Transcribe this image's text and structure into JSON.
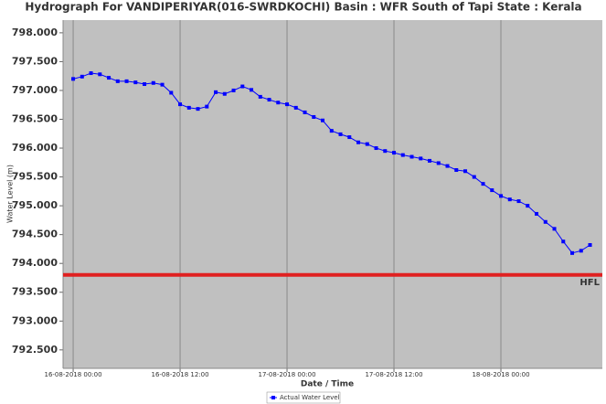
{
  "chart_data": {
    "type": "line",
    "title": "Hydrograph For VANDIPERIYAR(016-SWRDKOCHI) Basin : WFR South of Tapi State : Kerala",
    "x_label": "Date / Time",
    "y_label": "Water Level (m)",
    "x": [
      "2018-08-16 00:00",
      "2018-08-16 01:00",
      "2018-08-16 02:00",
      "2018-08-16 03:00",
      "2018-08-16 04:00",
      "2018-08-16 05:00",
      "2018-08-16 06:00",
      "2018-08-16 07:00",
      "2018-08-16 08:00",
      "2018-08-16 09:00",
      "2018-08-16 10:00",
      "2018-08-16 11:00",
      "2018-08-16 12:00",
      "2018-08-16 13:00",
      "2018-08-16 14:00",
      "2018-08-16 15:00",
      "2018-08-16 16:00",
      "2018-08-16 17:00",
      "2018-08-16 18:00",
      "2018-08-16 19:00",
      "2018-08-16 20:00",
      "2018-08-16 21:00",
      "2018-08-16 22:00",
      "2018-08-16 23:00",
      "2018-08-17 00:00",
      "2018-08-17 01:00",
      "2018-08-17 02:00",
      "2018-08-17 03:00",
      "2018-08-17 04:00",
      "2018-08-17 05:00",
      "2018-08-17 06:00",
      "2018-08-17 07:00",
      "2018-08-17 08:00",
      "2018-08-17 09:00",
      "2018-08-17 10:00",
      "2018-08-17 11:00",
      "2018-08-17 12:00",
      "2018-08-17 13:00",
      "2018-08-17 14:00",
      "2018-08-17 15:00",
      "2018-08-17 16:00",
      "2018-08-17 17:00",
      "2018-08-17 18:00",
      "2018-08-17 19:00",
      "2018-08-17 20:00",
      "2018-08-17 21:00",
      "2018-08-17 22:00",
      "2018-08-17 23:00",
      "2018-08-18 00:00",
      "2018-08-18 01:00",
      "2018-08-18 02:00",
      "2018-08-18 03:00",
      "2018-08-18 04:00",
      "2018-08-18 05:00",
      "2018-08-18 06:00",
      "2018-08-18 07:00",
      "2018-08-18 08:00",
      "2018-08-18 09:00",
      "2018-08-18 10:00"
    ],
    "series": [
      {
        "name": "Actual Water Level",
        "color": "#0000ff",
        "values": [
          797.2,
          797.24,
          797.3,
          797.28,
          797.22,
          797.16,
          797.16,
          797.14,
          797.11,
          797.13,
          797.1,
          796.96,
          796.76,
          796.7,
          796.68,
          796.72,
          796.97,
          796.94,
          797.0,
          797.07,
          797.01,
          796.89,
          796.84,
          796.79,
          796.76,
          796.7,
          796.62,
          796.54,
          796.48,
          796.3,
          796.24,
          796.19,
          796.1,
          796.07,
          796.0,
          795.95,
          795.92,
          795.88,
          795.85,
          795.82,
          795.78,
          795.74,
          795.69,
          795.62,
          795.6,
          795.5,
          795.38,
          795.27,
          795.17,
          795.11,
          795.08,
          795.0,
          794.86,
          794.72,
          794.6,
          794.38,
          794.18,
          794.22,
          794.32
        ]
      }
    ],
    "hfl": {
      "value": 793.8,
      "label": "HFL",
      "color": "#e02020"
    },
    "xlim": [
      "2018-08-15 22:52",
      "2018-08-18 11:23"
    ],
    "xticks": [
      {
        "value": "2018-08-16 00:00",
        "label": "16-08-2018 00:00"
      },
      {
        "value": "2018-08-16 12:00",
        "label": "16-08-2018 12:00"
      },
      {
        "value": "2018-08-17 00:00",
        "label": "17-08-2018 00:00"
      },
      {
        "value": "2018-08-17 12:00",
        "label": "17-08-2018 12:00"
      },
      {
        "value": "2018-08-18 00:00",
        "label": "18-08-2018 00:00"
      }
    ],
    "ylim": [
      792.18,
      798.22
    ],
    "yticks": [
      {
        "value": 792.5,
        "label": "792.500"
      },
      {
        "value": 793,
        "label": "793.000"
      },
      {
        "value": 793.5,
        "label": "793.500"
      },
      {
        "value": 794,
        "label": "794.000"
      },
      {
        "value": 794.5,
        "label": "794.500"
      },
      {
        "value": 795,
        "label": "795.000"
      },
      {
        "value": 795.5,
        "label": "795.500"
      },
      {
        "value": 796,
        "label": "796.000"
      },
      {
        "value": 796.5,
        "label": "796.500"
      },
      {
        "value": 797,
        "label": "797.000"
      },
      {
        "value": 797.5,
        "label": "797.500"
      },
      {
        "value": 798,
        "label": "798.000"
      }
    ],
    "grid": "x",
    "legend": "bottom"
  }
}
